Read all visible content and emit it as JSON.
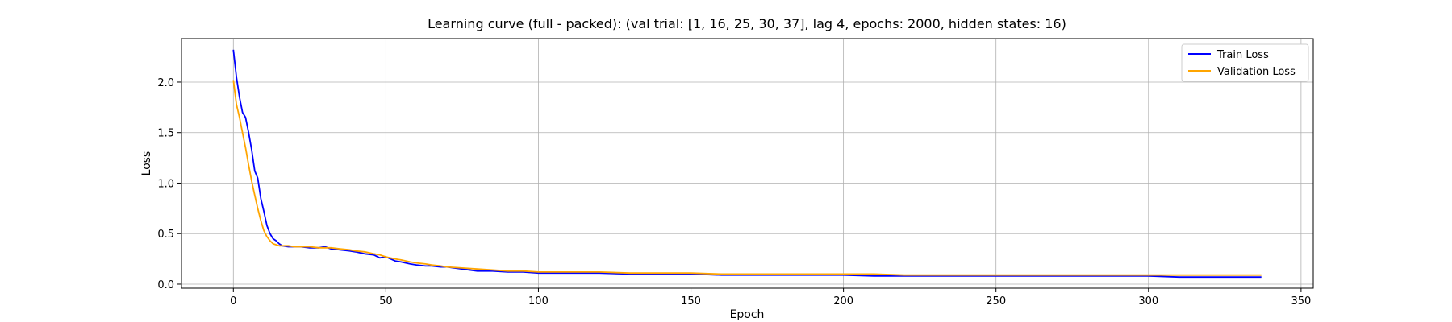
{
  "chart_data": {
    "type": "line",
    "title": "Learning curve (full - packed): (val trial: [1, 16, 25, 30, 37], lag 4, epochs: 2000, hidden states: 16)",
    "xlabel": "Epoch",
    "ylabel": "Loss",
    "xlim": [
      -17,
      354
    ],
    "ylim": [
      -0.04,
      2.43
    ],
    "xticks": [
      0,
      50,
      100,
      150,
      200,
      250,
      300,
      350
    ],
    "yticks": [
      0.0,
      0.5,
      1.0,
      1.5,
      2.0
    ],
    "xtick_labels": [
      "0",
      "50",
      "100",
      "150",
      "200",
      "250",
      "300",
      "350"
    ],
    "ytick_labels": [
      "0.0",
      "0.5",
      "1.0",
      "1.5",
      "2.0"
    ],
    "grid": true,
    "legend": {
      "position": "top-right",
      "entries": [
        {
          "label": "Train Loss",
          "color": "#0000ff"
        },
        {
          "label": "Validation Loss",
          "color": "#ffa500"
        }
      ]
    },
    "series": [
      {
        "name": "Train Loss",
        "color": "#0000ff",
        "x": [
          0,
          1,
          2,
          3,
          4,
          5,
          6,
          7,
          8,
          9,
          10,
          11,
          12,
          13,
          14,
          15,
          16,
          18,
          20,
          22,
          25,
          28,
          30,
          32,
          35,
          38,
          40,
          43,
          46,
          48,
          50,
          53,
          55,
          58,
          60,
          63,
          65,
          68,
          70,
          75,
          80,
          85,
          90,
          95,
          100,
          110,
          120,
          130,
          140,
          150,
          160,
          170,
          180,
          190,
          200,
          210,
          220,
          230,
          240,
          250,
          260,
          270,
          280,
          290,
          300,
          310,
          320,
          330,
          337
        ],
        "y": [
          2.32,
          2.05,
          1.85,
          1.7,
          1.65,
          1.5,
          1.33,
          1.12,
          1.05,
          0.85,
          0.72,
          0.58,
          0.5,
          0.45,
          0.43,
          0.4,
          0.38,
          0.37,
          0.37,
          0.37,
          0.36,
          0.36,
          0.37,
          0.35,
          0.34,
          0.33,
          0.32,
          0.3,
          0.29,
          0.26,
          0.27,
          0.23,
          0.22,
          0.2,
          0.19,
          0.18,
          0.18,
          0.17,
          0.17,
          0.15,
          0.13,
          0.13,
          0.12,
          0.12,
          0.11,
          0.11,
          0.11,
          0.1,
          0.1,
          0.1,
          0.09,
          0.09,
          0.09,
          0.09,
          0.09,
          0.08,
          0.08,
          0.08,
          0.08,
          0.08,
          0.08,
          0.08,
          0.08,
          0.08,
          0.08,
          0.07,
          0.07,
          0.07,
          0.07
        ]
      },
      {
        "name": "Validation Loss",
        "color": "#ffa500",
        "x": [
          0,
          1,
          2,
          3,
          4,
          5,
          6,
          7,
          8,
          9,
          10,
          11,
          12,
          13,
          14,
          15,
          16,
          18,
          20,
          22,
          25,
          28,
          30,
          32,
          35,
          38,
          40,
          43,
          46,
          48,
          50,
          53,
          55,
          58,
          60,
          63,
          65,
          68,
          70,
          75,
          80,
          85,
          90,
          95,
          100,
          110,
          120,
          130,
          140,
          150,
          160,
          170,
          180,
          190,
          200,
          210,
          220,
          230,
          240,
          250,
          260,
          270,
          280,
          290,
          300,
          310,
          320,
          330,
          337
        ],
        "y": [
          2.02,
          1.78,
          1.65,
          1.5,
          1.35,
          1.18,
          1.02,
          0.88,
          0.75,
          0.63,
          0.53,
          0.47,
          0.43,
          0.4,
          0.39,
          0.38,
          0.38,
          0.38,
          0.37,
          0.37,
          0.37,
          0.36,
          0.36,
          0.36,
          0.35,
          0.34,
          0.33,
          0.32,
          0.3,
          0.29,
          0.27,
          0.25,
          0.24,
          0.22,
          0.21,
          0.2,
          0.19,
          0.18,
          0.17,
          0.16,
          0.15,
          0.14,
          0.13,
          0.13,
          0.12,
          0.12,
          0.12,
          0.11,
          0.11,
          0.11,
          0.1,
          0.1,
          0.1,
          0.1,
          0.1,
          0.1,
          0.09,
          0.09,
          0.09,
          0.09,
          0.09,
          0.09,
          0.09,
          0.09,
          0.09,
          0.09,
          0.09,
          0.09,
          0.09
        ]
      }
    ]
  }
}
